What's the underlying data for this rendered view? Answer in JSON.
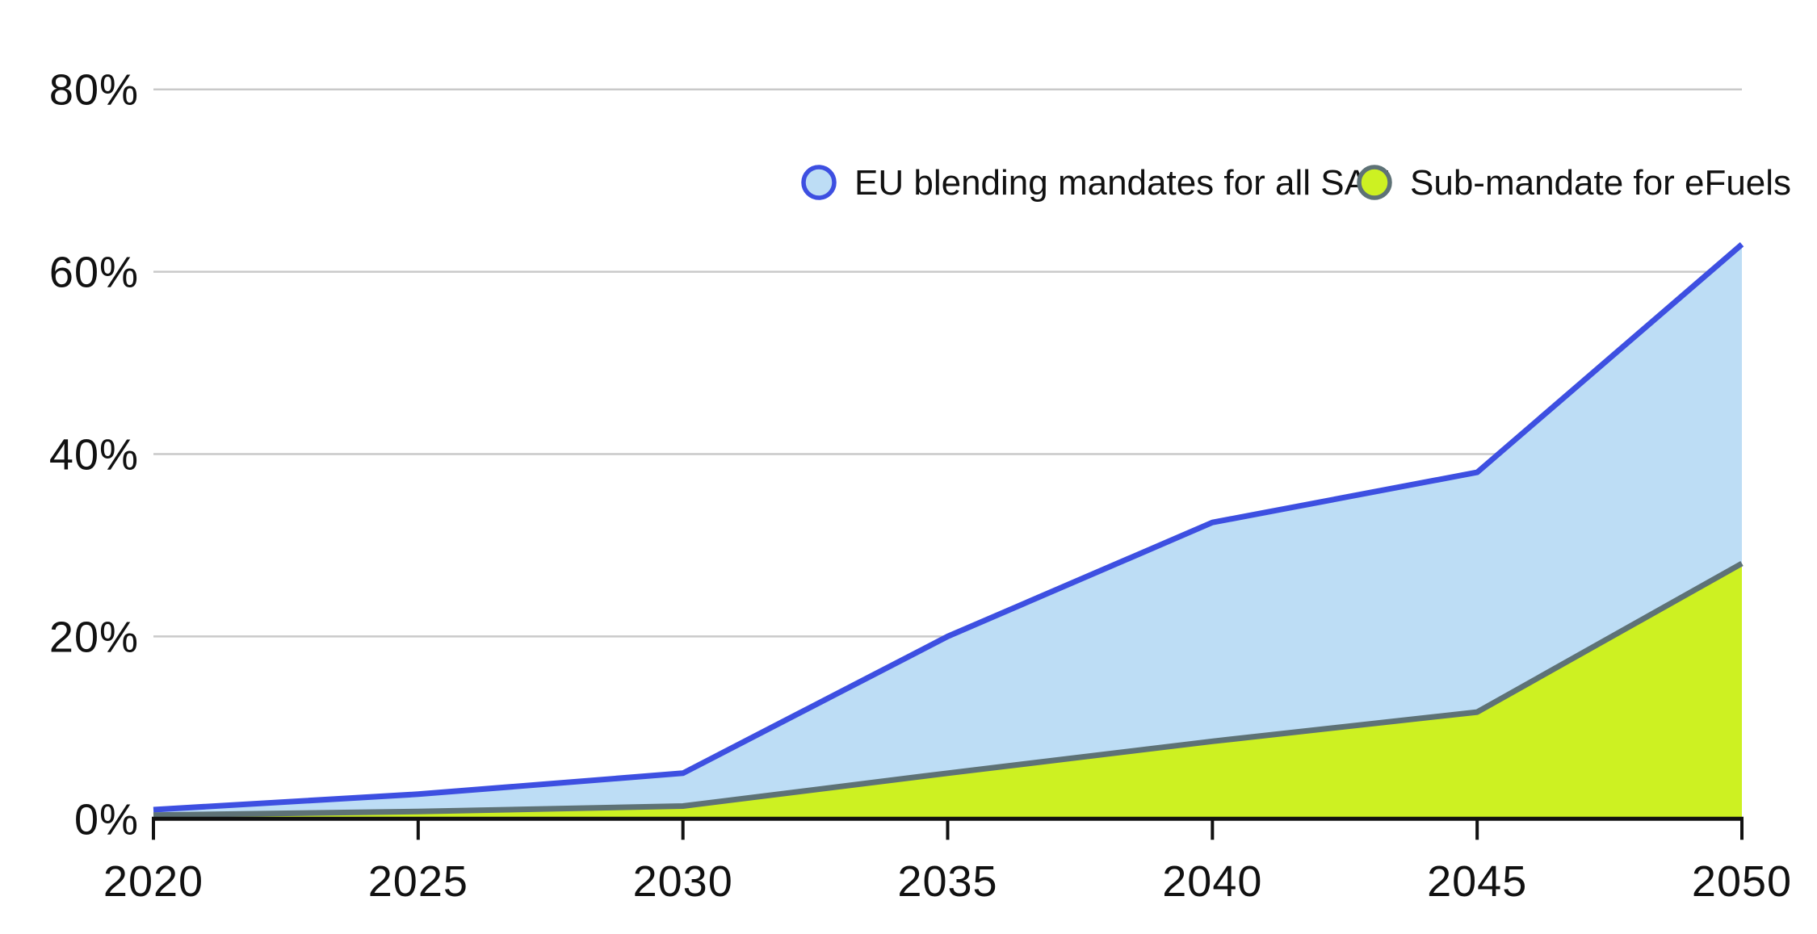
{
  "chart_data": {
    "type": "area",
    "title": "",
    "xlabel": "",
    "ylabel": "",
    "x": [
      2020,
      2025,
      2030,
      2035,
      2040,
      2045,
      2050
    ],
    "xtick_labels": [
      "2020",
      "2025",
      "2030",
      "2035",
      "2040",
      "2045",
      "2050"
    ],
    "yticks": [
      0,
      20,
      40,
      60,
      80
    ],
    "ytick_labels": [
      "0%",
      "20%",
      "40%",
      "60%",
      "80%"
    ],
    "ylim": [
      0,
      80
    ],
    "xlim": [
      2020,
      2050
    ],
    "grid": true,
    "stacked": false,
    "legend_position": "top-right-inside",
    "series": [
      {
        "name": "EU blending mandates for all SAF",
        "values": [
          1.0,
          2.7,
          5.0,
          20.0,
          32.5,
          38.0,
          63.0
        ],
        "line_color": "#3d4fe1",
        "fill_color": "#bdddf5"
      },
      {
        "name": "Sub-mandate for eFuels",
        "values": [
          0.4,
          0.8,
          1.4,
          5.0,
          8.5,
          11.7,
          28.0
        ],
        "line_color": "#5e7276",
        "fill_color": "#cdf122"
      }
    ]
  },
  "legend": {
    "items": [
      {
        "label": "EU blending mandates for all SAF",
        "marker": "circle-icon",
        "marker_fill": "#bdddf5",
        "marker_border": "#3d4fe1"
      },
      {
        "label": "Sub-mandate for eFuels",
        "marker": "circle-icon",
        "marker_fill": "#cdf122",
        "marker_border": "#5e7276"
      }
    ]
  },
  "colors": {
    "background": "#ffffff",
    "gridline": "#c9c9c9",
    "axis": "#111111",
    "text": "#111111"
  }
}
